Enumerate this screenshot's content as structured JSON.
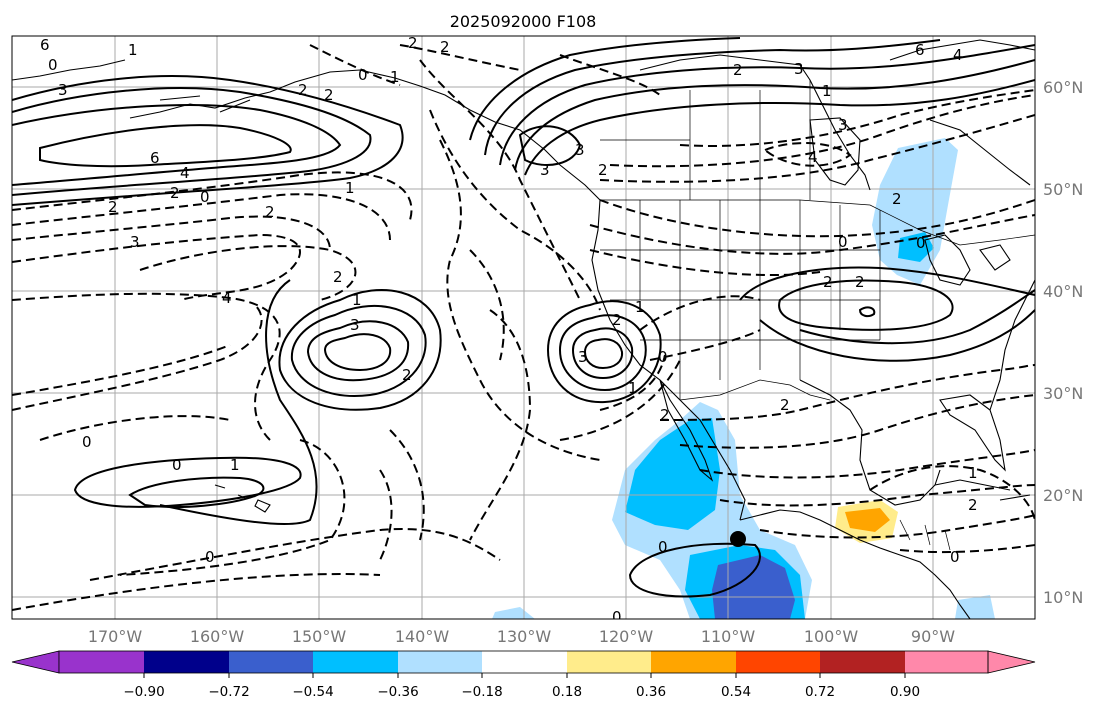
{
  "title": "2025092000 F108",
  "map": {
    "lon_labels": [
      "170°W",
      "160°W",
      "150°W",
      "140°W",
      "130°W",
      "120°W",
      "110°W",
      "100°W",
      "90°W"
    ],
    "lat_labels": [
      "60°N",
      "50°N",
      "40°N",
      "30°N",
      "20°N",
      "10°N"
    ],
    "contour_labels": [
      "6",
      "1",
      "0",
      "3",
      "2",
      "2",
      "1",
      "0",
      "2",
      "3",
      "6",
      "4",
      "2",
      "0",
      "2",
      "2",
      "3",
      "4",
      "1",
      "2",
      "1",
      "3",
      "2",
      "3",
      "0",
      "2",
      "1",
      "0",
      "1",
      "0",
      "0",
      "2",
      "6",
      "4",
      "2",
      "3",
      "1",
      "3",
      "4",
      "2",
      "2",
      "2",
      "0",
      "2",
      "1",
      "0",
      "2",
      "1",
      "0",
      "0",
      "2",
      "2",
      "0",
      "3"
    ],
    "location_marker": "storm-center-marker"
  },
  "colorbar": {
    "ticks": [
      "−0.90",
      "−0.72",
      "−0.54",
      "−0.36",
      "−0.18",
      "0.18",
      "0.36",
      "0.54",
      "0.72",
      "0.90"
    ],
    "colors": [
      "#9933cc",
      "#00008b",
      "#3a5fcd",
      "#00bfff",
      "#b0e0ff",
      "#ffffff",
      "#ffec8b",
      "#ffa500",
      "#ff4500",
      "#b22222",
      "#ff88aa"
    ]
  }
}
